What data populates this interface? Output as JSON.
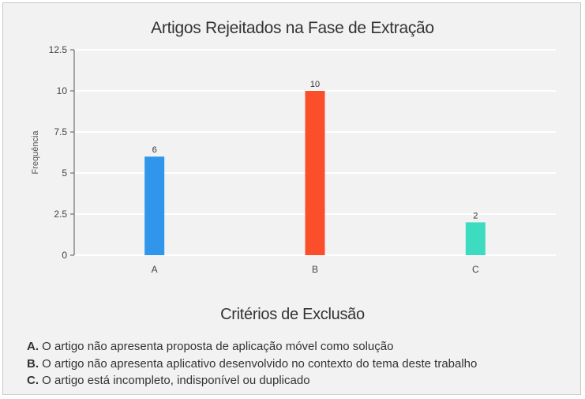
{
  "chart_data": {
    "type": "bar",
    "title": "Artigos Rejeitados na Fase de Extração",
    "xlabel": "",
    "ylabel": "Frequência",
    "categories": [
      "A",
      "B",
      "C"
    ],
    "values": [
      6,
      10,
      2
    ],
    "colors": [
      "#2f96ec",
      "#fb4f2c",
      "#3ddbc0"
    ],
    "data_labels": [
      "6",
      "10",
      "2"
    ],
    "ylim": [
      0,
      12.5
    ],
    "yticks": [
      "0",
      "2.5",
      "5",
      "7.5",
      "10",
      "12.5"
    ],
    "grid": true
  },
  "legend": {
    "title": "Critérios de Exclusão",
    "items": [
      {
        "key": "A.",
        "text": " O artigo não apresenta proposta de aplicação móvel como solução"
      },
      {
        "key": "B.",
        "text": " O artigo não apresenta aplicativo desenvolvido no contexto do tema deste trabalho"
      },
      {
        "key": "C.",
        "text": " O artigo está incompleto, indisponível ou duplicado"
      }
    ]
  }
}
